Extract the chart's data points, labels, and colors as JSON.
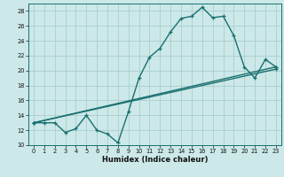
{
  "xlabel": "Humidex (Indice chaleur)",
  "bg_color": "#cce8e8",
  "grid_color": "#aacece",
  "line_color": "#1a7070",
  "ylim": [
    10,
    29
  ],
  "xlim": [
    -0.5,
    23.5
  ],
  "yticks": [
    10,
    12,
    14,
    16,
    18,
    20,
    22,
    24,
    26,
    28
  ],
  "xticks": [
    0,
    1,
    2,
    3,
    4,
    5,
    6,
    7,
    8,
    9,
    10,
    11,
    12,
    13,
    14,
    15,
    16,
    17,
    18,
    19,
    20,
    21,
    22,
    23
  ],
  "series1_x": [
    0,
    1,
    2,
    3,
    4,
    5,
    6,
    7,
    8,
    9,
    10,
    11,
    12,
    13,
    14,
    15,
    16,
    17,
    18,
    19,
    20,
    21,
    22,
    23
  ],
  "series1_y": [
    13,
    13,
    13,
    11.7,
    12.2,
    14.0,
    12.0,
    11.5,
    10.3,
    14.5,
    19.0,
    21.8,
    23.0,
    25.2,
    27.0,
    27.3,
    28.5,
    27.1,
    27.3,
    24.7,
    20.5,
    19.0,
    21.5,
    20.5
  ],
  "series2_x": [
    0,
    23
  ],
  "series2_y": [
    13.0,
    20.5
  ],
  "series3_x": [
    0,
    23
  ],
  "series3_y": [
    13.0,
    20.2
  ],
  "xlabel_fontsize": 6.0,
  "tick_fontsize": 4.8,
  "line_width": 1.0,
  "marker_size": 2.5
}
